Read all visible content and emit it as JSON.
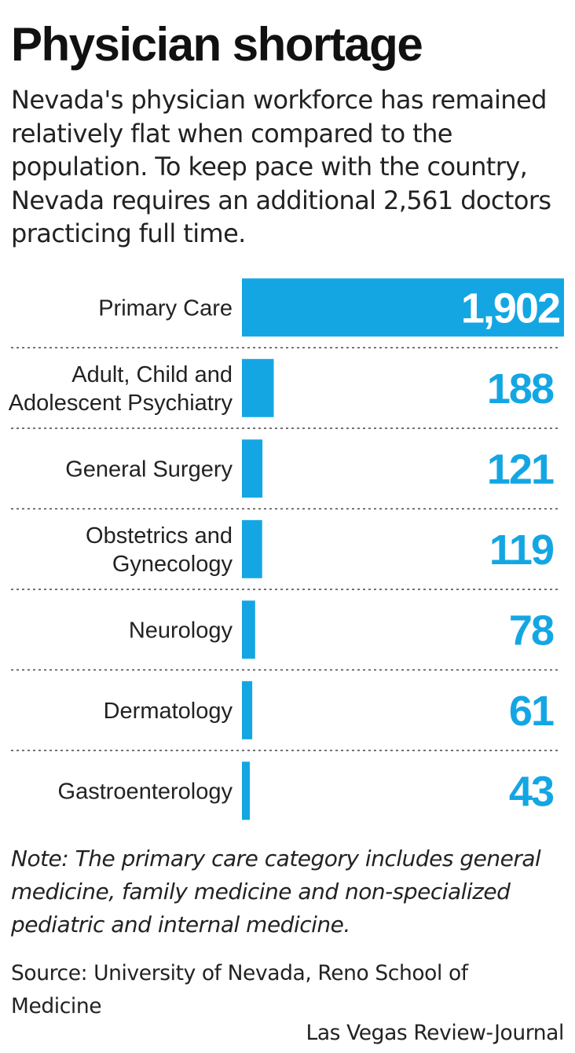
{
  "header": {
    "title": "Physician shortage",
    "subtitle": "Nevada's physician workforce has remained relatively flat when compared to the population. To keep pace with the country, Nevada requires an additional 2,561 doctors practicing full time."
  },
  "colors": {
    "bar": "#14a6e3",
    "value_text": "#14a6e3",
    "value_text_inside": "#ffffff",
    "divider": "#444444"
  },
  "chart_data": {
    "type": "bar",
    "orientation": "horizontal",
    "categories": [
      [
        "Primary Care"
      ],
      [
        "Adult, Child and",
        "Adolescent Psychiatry"
      ],
      [
        "General Surgery"
      ],
      [
        "Obstetrics and",
        "Gynecology"
      ],
      [
        "Neurology"
      ],
      [
        "Dermatology"
      ],
      [
        "Gastroenterology"
      ]
    ],
    "values": [
      1902,
      188,
      121,
      119,
      78,
      61,
      43
    ],
    "value_labels": [
      "1,902",
      "188",
      "121",
      "119",
      "78",
      "61",
      "43"
    ],
    "xlim": [
      0,
      1902
    ],
    "grid": false,
    "row_dividers": "dotted",
    "legend": "none"
  },
  "footer": {
    "note": "Note: The primary care category includes general medicine, family medicine and non-specialized pediatric and internal medicine.",
    "source": "Source: University of Nevada, Reno School of Medicine",
    "credit": "Las Vegas Review-Journal"
  }
}
